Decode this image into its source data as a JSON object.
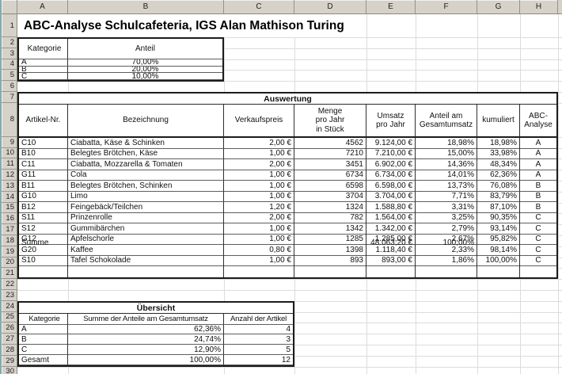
{
  "sheet": {
    "columns": [
      "A",
      "B",
      "C",
      "D",
      "E",
      "F",
      "G",
      "H"
    ],
    "rows": [
      "1",
      "2",
      "3",
      "4",
      "5",
      "6",
      "7",
      "8",
      "9",
      "10",
      "11",
      "12",
      "13",
      "14",
      "15",
      "16",
      "17",
      "18",
      "19",
      "20",
      "21",
      "22",
      "23",
      "24",
      "25",
      "26",
      "27",
      "28",
      "29",
      "30"
    ]
  },
  "title": "ABC-Analyse Schulcafeteria, IGS Alan Mathison Turing",
  "colors": {
    "header_bg": "#d6d2ca",
    "grid_line": "#dcdcdc",
    "table_border": "#1c1c1c",
    "window_edge": "#85abab"
  },
  "kategorie": {
    "headers": [
      "Kategorie",
      "Anteil"
    ],
    "rows": [
      [
        "A",
        "70,00%"
      ],
      [
        "B",
        "20,00%"
      ],
      [
        "C",
        "10,00%"
      ]
    ]
  },
  "auswertung": {
    "title": "Auswertung",
    "headers": [
      "Artikel-Nr.",
      "Bezeichnung",
      "Verkaufspreis",
      "Menge\npro Jahr\nin Stück",
      "Umsatz\npro Jahr",
      "Anteil am\nGesamtumsatz",
      "kumuliert",
      "ABC-\nAnalyse"
    ],
    "rows": [
      [
        "C10",
        "Ciabatta, Käse & Schinken",
        "2,00 €",
        "4562",
        "9.124,00 €",
        "18,98%",
        "18,98%",
        "A"
      ],
      [
        "B10",
        "Belegtes Brötchen, Käse",
        "1,00 €",
        "7210",
        "7.210,00 €",
        "15,00%",
        "33,98%",
        "A"
      ],
      [
        "C11",
        "Ciabatta, Mozzarella & Tomaten",
        "2,00 €",
        "3451",
        "6.902,00 €",
        "14,36%",
        "48,34%",
        "A"
      ],
      [
        "G11",
        "Cola",
        "1,00 €",
        "6734",
        "6.734,00 €",
        "14,01%",
        "62,36%",
        "A"
      ],
      [
        "B11",
        "Belegtes Brötchen, Schinken",
        "1,00 €",
        "6598",
        "6.598,00 €",
        "13,73%",
        "76,08%",
        "B"
      ],
      [
        "G10",
        "Limo",
        "1,00 €",
        "3704",
        "3.704,00 €",
        "7,71%",
        "83,79%",
        "B"
      ],
      [
        "B12",
        "Feingebäck/Teilchen",
        "1,20 €",
        "1324",
        "1.588,80 €",
        "3,31%",
        "87,10%",
        "B"
      ],
      [
        "S11",
        "Prinzenrolle",
        "2,00 €",
        "782",
        "1.564,00 €",
        "3,25%",
        "90,35%",
        "C"
      ],
      [
        "S12",
        "Gummibärchen",
        "1,00 €",
        "1342",
        "1.342,00 €",
        "2,79%",
        "93,14%",
        "C"
      ],
      [
        "G12",
        "Apfelschorle",
        "1,00 €",
        "1285",
        "1.285,00 €",
        "2,67%",
        "95,82%",
        "C"
      ],
      [
        "G20",
        "Kaffee",
        "0,80 €",
        "1398",
        "1.118,40 €",
        "2,33%",
        "98,14%",
        "C"
      ],
      [
        "S10",
        "Tafel Schokolade",
        "1,00 €",
        "893",
        "893,00 €",
        "1,86%",
        "100,00%",
        "C"
      ]
    ],
    "summe": {
      "label": "Summe",
      "umsatz": "48.063,20 €",
      "anteil": "100,00%"
    }
  },
  "uebersicht": {
    "title": "Übersicht",
    "headers": [
      "Kategorie",
      "Summe der Anteile am Gesamtumsatz",
      "Anzahl der Artikel"
    ],
    "rows": [
      [
        "A",
        "62,36%",
        "4"
      ],
      [
        "B",
        "24,74%",
        "3"
      ],
      [
        "C",
        "12,90%",
        "5"
      ],
      [
        "Gesamt",
        "100,00%",
        "12"
      ]
    ]
  }
}
